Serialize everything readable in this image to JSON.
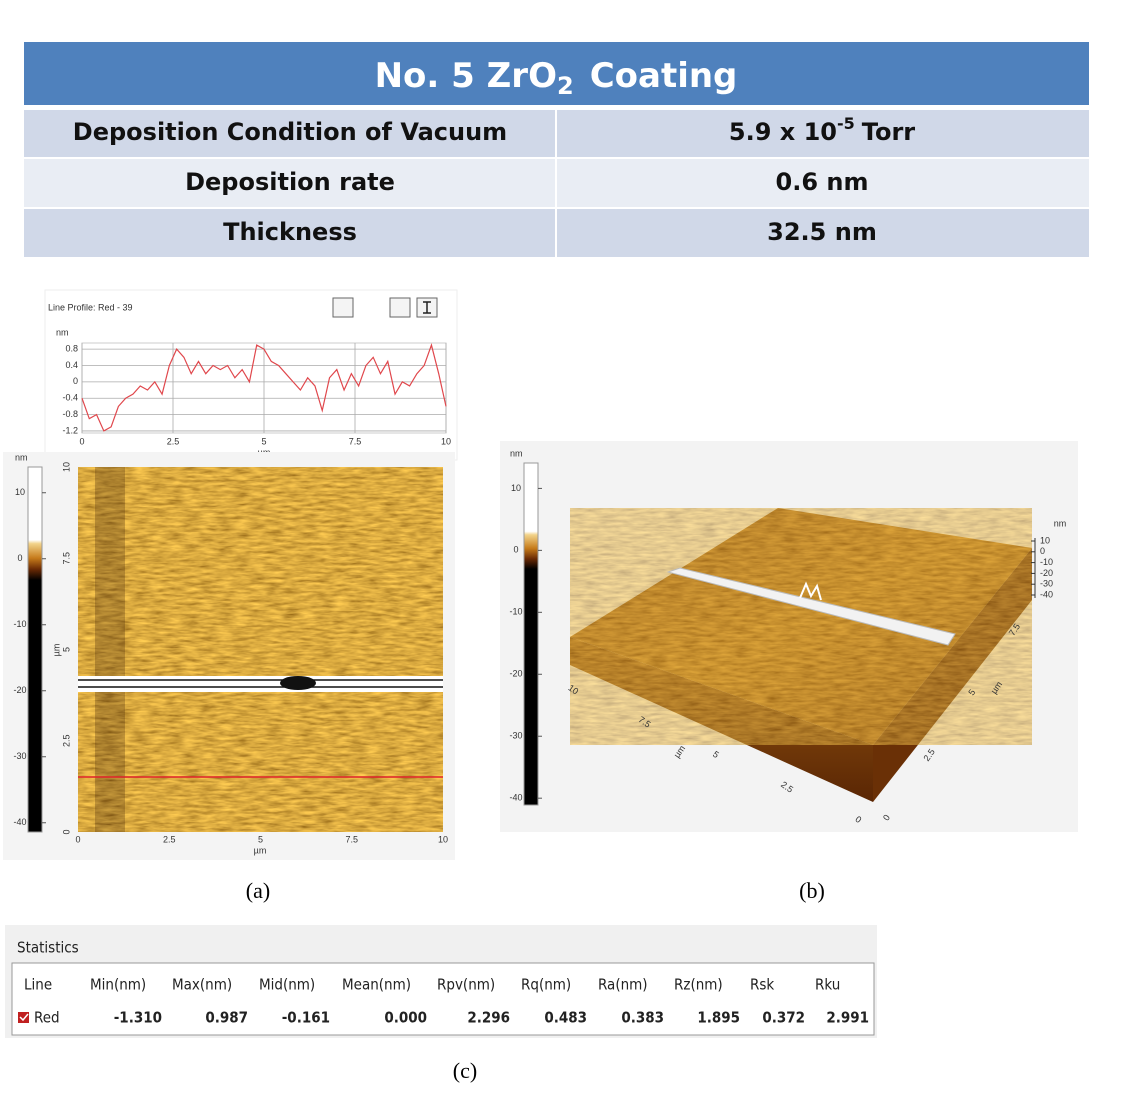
{
  "header": {
    "title": {
      "main": "No. 5 ZrO",
      "sub": "2",
      "tail": "Coating"
    },
    "rows": [
      {
        "label": "Deposition Condition of Vacuum",
        "value": {
          "main": "5.9 x 10",
          "sup": "-5",
          "tail": "Torr"
        }
      },
      {
        "label": "Deposition rate",
        "value": {
          "main": "0.6 nm"
        }
      },
      {
        "label": "Thickness",
        "value": {
          "main": "32.5 nm"
        }
      }
    ]
  },
  "line_profile": {
    "title": "Line Profile: Red - 39",
    "y_unit": "nm",
    "x_unit": "µm",
    "x": [
      0,
      0.2,
      0.4,
      0.6,
      0.8,
      1.0,
      1.2,
      1.4,
      1.6,
      1.8,
      2.0,
      2.2,
      2.4,
      2.6,
      2.8,
      3.0,
      3.2,
      3.4,
      3.6,
      3.8,
      4.0,
      4.2,
      4.4,
      4.6,
      4.8,
      5.0,
      5.2,
      5.4,
      5.6,
      5.8,
      6.0,
      6.2,
      6.4,
      6.6,
      6.8,
      7.0,
      7.2,
      7.4,
      7.6,
      7.8,
      8.0,
      8.2,
      8.4,
      8.6,
      8.8,
      9.0,
      9.2,
      9.4,
      9.6,
      9.8,
      10.0
    ],
    "values": [
      -0.4,
      -0.9,
      -0.8,
      -1.2,
      -1.1,
      -0.6,
      -0.4,
      -0.3,
      -0.1,
      -0.2,
      0.0,
      -0.3,
      0.4,
      0.8,
      0.6,
      0.2,
      0.5,
      0.2,
      0.4,
      0.3,
      0.4,
      0.1,
      0.3,
      0.0,
      0.9,
      0.8,
      0.5,
      0.4,
      0.2,
      0.0,
      -0.2,
      0.1,
      -0.1,
      -0.7,
      0.1,
      0.3,
      -0.2,
      0.2,
      -0.1,
      0.4,
      0.6,
      0.2,
      0.5,
      -0.3,
      0.0,
      -0.1,
      0.2,
      0.4,
      0.9,
      0.2,
      -0.6
    ],
    "color": "#e0474c",
    "xlim": [
      0,
      10
    ],
    "ylim": [
      -1.25,
      0.95
    ],
    "xticks": [
      0,
      2.5,
      5,
      7.5,
      10
    ],
    "yticks": [
      0.8,
      0.4,
      0,
      -0.4,
      -0.8,
      -1.2
    ],
    "grid": true
  },
  "panel_a": {
    "colorbar_unit": "nm",
    "colorbar_lim": [
      -41.4,
      13.9
    ],
    "colorbar_ticks": [
      10,
      0,
      -10,
      -20,
      -30,
      -40
    ],
    "x_unit": "µm",
    "y_unit": "µm",
    "lim": [
      0,
      10
    ],
    "ticks": [
      0,
      2.5,
      5,
      7.5,
      10
    ],
    "caption": "(a)"
  },
  "panel_b": {
    "colorbar_unit": "nm",
    "colorbar_lim": [
      -41.1,
      14.1
    ],
    "colorbar_ticks": [
      10,
      0,
      -10,
      -20,
      -30,
      -40
    ],
    "z_unit": "nm",
    "z_ticks": [
      10,
      0,
      -10,
      -20,
      -30,
      -40
    ],
    "x_unit": "µm",
    "x_ticks": [
      10,
      7.5,
      5,
      2.5,
      0
    ],
    "y_unit": "µm",
    "y_ticks": [
      0,
      2.5,
      5,
      7.5
    ],
    "caption": "(b)"
  },
  "statistics": {
    "title": "Statistics",
    "columns": [
      "Line",
      "Min(nm)",
      "Max(nm)",
      "Mid(nm)",
      "Mean(nm)",
      "Rpv(nm)",
      "Rq(nm)",
      "Ra(nm)",
      "Rz(nm)",
      "Rsk",
      "Rku"
    ],
    "rows": [
      [
        "Red",
        "-1.310",
        "0.987",
        "-0.161",
        "0.000",
        "2.296",
        "0.483",
        "0.383",
        "1.895",
        "0.372",
        "2.991"
      ]
    ],
    "caption": "(c)"
  }
}
